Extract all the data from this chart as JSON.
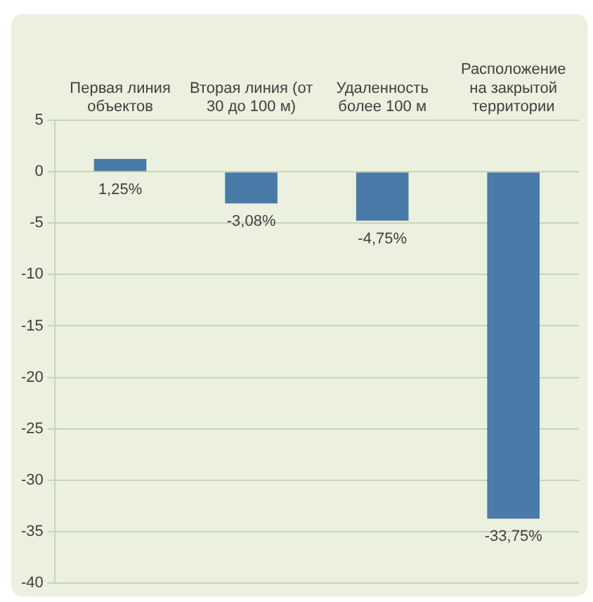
{
  "chart_data": {
    "type": "bar",
    "categories": [
      "Первая линия объектов",
      "Вторая линия (от 30 до 100 м)",
      "Удаленность более 100 м",
      "Расположение на закрытой территории"
    ],
    "values": [
      1.25,
      -3.08,
      -4.75,
      -33.75
    ],
    "color": "#4a7aa7",
    "value_labels": [
      "1,25%",
      "-3,08%",
      "-4,75%",
      "-33,75%"
    ],
    "ylim": [
      -40,
      5
    ],
    "yticks": [
      -40,
      -35,
      -30,
      -25,
      -20,
      -15,
      -10,
      -5,
      0,
      5
    ],
    "grid": "y",
    "legend": false
  }
}
